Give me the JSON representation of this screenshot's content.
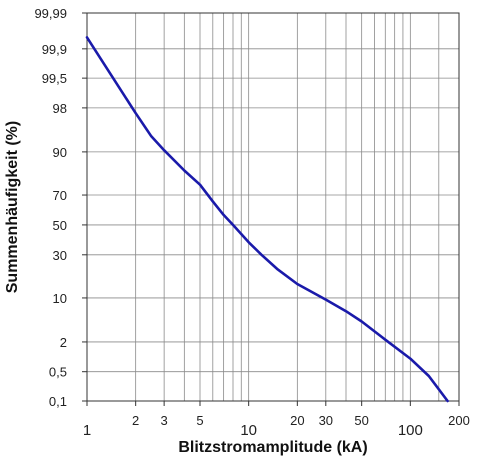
{
  "chart_data": {
    "type": "line",
    "title": "",
    "xlabel": "Blitzstromamplitude (kA)",
    "ylabel": "Summenhäufigkeit (%)",
    "x_scale": "log",
    "y_scale": "normal-probability",
    "xlim": [
      1,
      200
    ],
    "ylim": [
      0.1,
      99.99
    ],
    "grid": true,
    "x_ticks": [
      {
        "value": 1,
        "label": "1",
        "major": true
      },
      {
        "value": 2,
        "label": "2",
        "major": false
      },
      {
        "value": 3,
        "label": "3",
        "major": false
      },
      {
        "value": 5,
        "label": "5",
        "major": false
      },
      {
        "value": 10,
        "label": "10",
        "major": true
      },
      {
        "value": 20,
        "label": "20",
        "major": false
      },
      {
        "value": 30,
        "label": "30",
        "major": false
      },
      {
        "value": 50,
        "label": "50",
        "major": false
      },
      {
        "value": 100,
        "label": "100",
        "major": true
      },
      {
        "value": 200,
        "label": "200",
        "major": false
      }
    ],
    "x_minor_grid": [
      4,
      6,
      7,
      8,
      9,
      40,
      60,
      70,
      80,
      90,
      150
    ],
    "y_ticks": [
      {
        "value": 99.99,
        "label": "99,99"
      },
      {
        "value": 99.9,
        "label": "99,9"
      },
      {
        "value": 99.5,
        "label": "99,5"
      },
      {
        "value": 98,
        "label": "98"
      },
      {
        "value": 90,
        "label": "90"
      },
      {
        "value": 70,
        "label": "70"
      },
      {
        "value": 50,
        "label": "50"
      },
      {
        "value": 30,
        "label": "30"
      },
      {
        "value": 10,
        "label": "10"
      },
      {
        "value": 2,
        "label": "2"
      },
      {
        "value": 0.5,
        "label": "0,5"
      },
      {
        "value": 0.1,
        "label": "0,1"
      }
    ],
    "series": [
      {
        "color": "#1a1aaa",
        "x": [
          1,
          1.5,
          2,
          2.5,
          3,
          4,
          5,
          6,
          7,
          8,
          10,
          12,
          15,
          20,
          30,
          40,
          50,
          70,
          100,
          130,
          170
        ],
        "y": [
          99.95,
          99.4,
          97.5,
          94,
          90.5,
          83,
          76,
          66,
          57,
          50,
          38,
          30,
          22,
          15,
          9.5,
          6.5,
          4.5,
          2.2,
          0.95,
          0.4,
          0.1
        ]
      }
    ]
  }
}
